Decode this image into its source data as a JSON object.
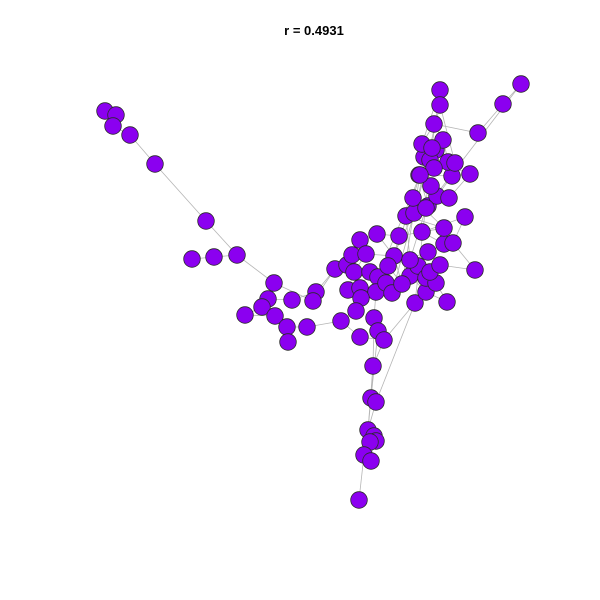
{
  "title": "r = 0.4931",
  "colors": {
    "node_fill": "#8b00f0",
    "node_stroke": "#2a2a2a",
    "edge": "#b5b5b5",
    "background": "#ffffff"
  }
}
